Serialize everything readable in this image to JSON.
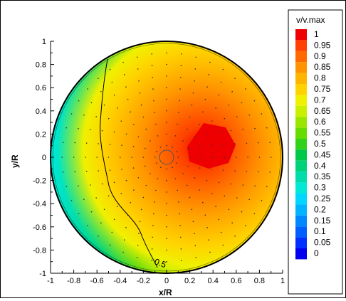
{
  "chart_data": {
    "type": "heatmap",
    "xlabel": "x/R",
    "ylabel": "y/R",
    "xlim": [
      -1,
      1
    ],
    "ylim": [
      -1,
      1
    ],
    "x_ticks": [
      "-1",
      "-0.8",
      "-0.6",
      "-0.4",
      "-0.2",
      "0",
      "0.2",
      "0.4",
      "0.6",
      "0.8",
      "1"
    ],
    "y_ticks": [
      "-1",
      "-0.8",
      "-0.6",
      "-0.4",
      "-0.2",
      "0",
      "0.2",
      "0.4",
      "0.6",
      "0.8",
      "1"
    ],
    "colorbar": {
      "title": "v/v.max",
      "levels": [
        "1",
        "0.95",
        "0.9",
        "0.85",
        "0.8",
        "0.75",
        "0.7",
        "0.65",
        "0.6",
        "0.55",
        "0.5",
        "0.45",
        "0.4",
        "0.35",
        "0.3",
        "0.25",
        "0.2",
        "0.15",
        "0.1",
        "0.05",
        "0"
      ],
      "colors": [
        "#ee0000",
        "#ff4000",
        "#ff6a00",
        "#ff9400",
        "#ffb400",
        "#ffd200",
        "#f0f000",
        "#c8f000",
        "#9ae600",
        "#66dc00",
        "#33d21a",
        "#00c84a",
        "#00d27a",
        "#00dcaa",
        "#00e8d6",
        "#00d6ff",
        "#00b4ff",
        "#0088ff",
        "#0060ff",
        "#0030ff",
        "#0000ee"
      ]
    },
    "contour_label": "0.5",
    "peak": {
      "x": 0.3,
      "y": 0.08,
      "value": 1.0
    },
    "grid": false,
    "legend_position": "right"
  }
}
